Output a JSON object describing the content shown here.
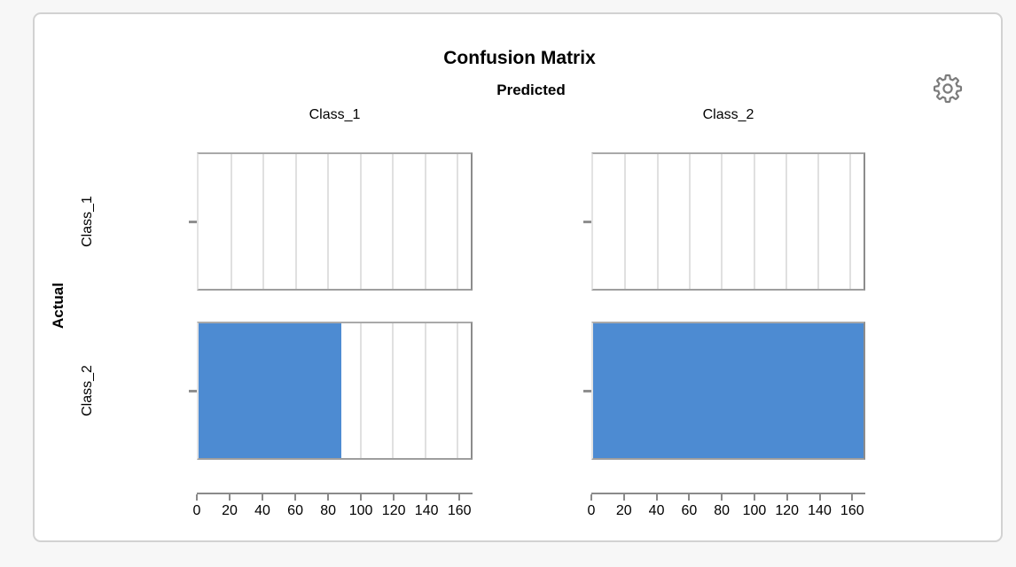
{
  "report": {
    "title": "Confusion Matrix",
    "predicted_label": "Predicted",
    "actual_label": "Actual"
  },
  "icons": {
    "settings": "gear"
  },
  "colors": {
    "page_bg": "#f7f7f7",
    "card_bg": "#ffffff",
    "card_border": "#d2d2d2",
    "panel_border": "#9e9e9e",
    "gridline": "#e0e0e0",
    "bar_fill": "#4d8bd2",
    "axis": "#8a8a8a",
    "icon": "#7b7b7b",
    "text": "#000000"
  },
  "chart_data": {
    "type": "bar",
    "orientation": "horizontal",
    "title": "Confusion Matrix",
    "column_group_label": "Predicted",
    "row_group_label": "Actual",
    "columns": [
      "Class_1",
      "Class_2"
    ],
    "rows": [
      "Class_1",
      "Class_2"
    ],
    "values": [
      [
        0,
        0
      ],
      [
        88,
        168
      ]
    ],
    "xlim": [
      0,
      168
    ],
    "x_ticks": [
      0,
      20,
      40,
      60,
      80,
      100,
      120,
      140,
      160
    ],
    "grid": true,
    "legend": false,
    "bar_color": "#4d8bd2"
  }
}
